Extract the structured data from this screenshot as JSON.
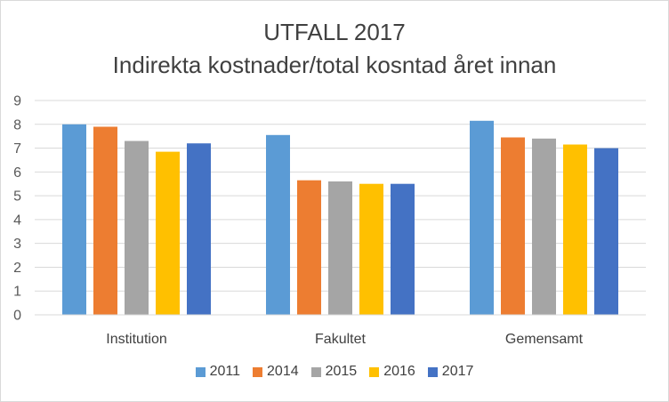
{
  "chart_data": {
    "type": "bar",
    "title": "UTFALL 2017",
    "subtitle": "Indirekta kostnader/total kosntad året innan",
    "categories": [
      "Institution",
      "Fakultet",
      "Gemensamt"
    ],
    "series": [
      {
        "name": "2011",
        "color": "#5b9bd5",
        "values": [
          8.0,
          7.55,
          8.15
        ]
      },
      {
        "name": "2014",
        "color": "#ed7d31",
        "values": [
          7.9,
          5.65,
          7.45
        ]
      },
      {
        "name": "2015",
        "color": "#a5a5a5",
        "values": [
          7.3,
          5.6,
          7.4
        ]
      },
      {
        "name": "2016",
        "color": "#ffc000",
        "values": [
          6.85,
          5.5,
          7.15
        ]
      },
      {
        "name": "2017",
        "color": "#4472c4",
        "values": [
          7.2,
          5.5,
          7.0
        ]
      }
    ],
    "yticks": [
      "0",
      "1",
      "2",
      "3",
      "4",
      "5",
      "6",
      "7",
      "8",
      "9"
    ],
    "ylim": [
      0,
      9
    ],
    "xlabel": "",
    "ylabel": "",
    "grid": true,
    "gridline_color": "#d9d9d9",
    "legend_position": "bottom"
  }
}
